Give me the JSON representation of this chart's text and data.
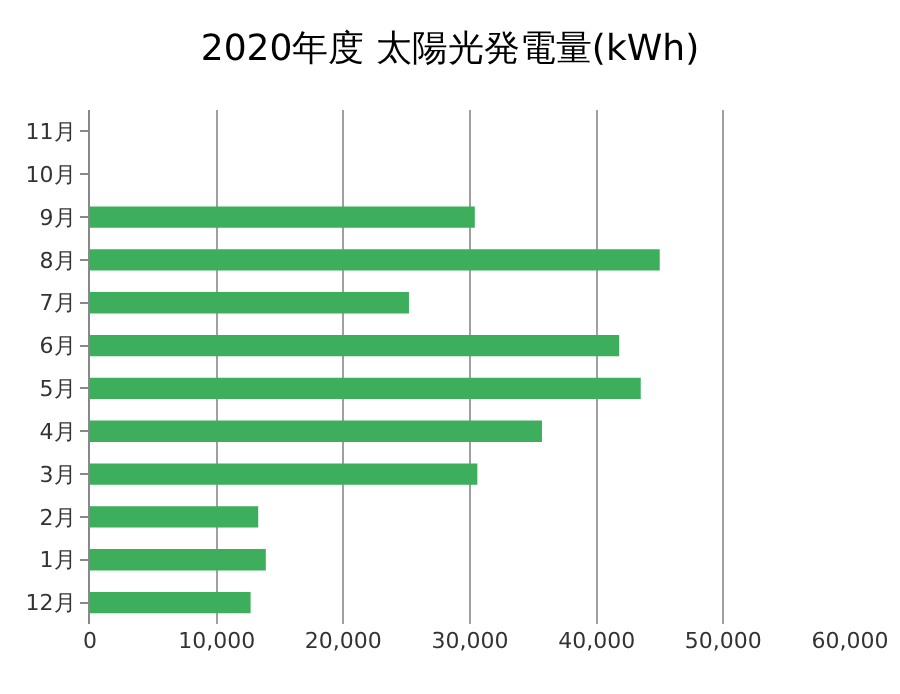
{
  "chart_data": {
    "type": "bar",
    "orientation": "horizontal",
    "title": "2020年度 太陽光発電量(kWh)",
    "categories": [
      "11月",
      "10月",
      "9月",
      "8月",
      "7月",
      "6月",
      "5月",
      "4月",
      "3月",
      "2月",
      "1月",
      "12月"
    ],
    "values": [
      null,
      null,
      30300,
      44900,
      25100,
      41700,
      43400,
      35600,
      30500,
      13200,
      13800,
      12600
    ],
    "color": "#3cae5c",
    "xlim": [
      0,
      60000
    ],
    "xticks": [
      {
        "value": 0,
        "label": "0"
      },
      {
        "value": 10000,
        "label": "10,000"
      },
      {
        "value": 20000,
        "label": "20,000"
      },
      {
        "value": 30000,
        "label": "30,000"
      },
      {
        "value": 40000,
        "label": "40,000"
      },
      {
        "value": 50000,
        "label": "50,000"
      },
      {
        "value": 60000,
        "label": "60,000"
      }
    ],
    "grid": "x"
  }
}
